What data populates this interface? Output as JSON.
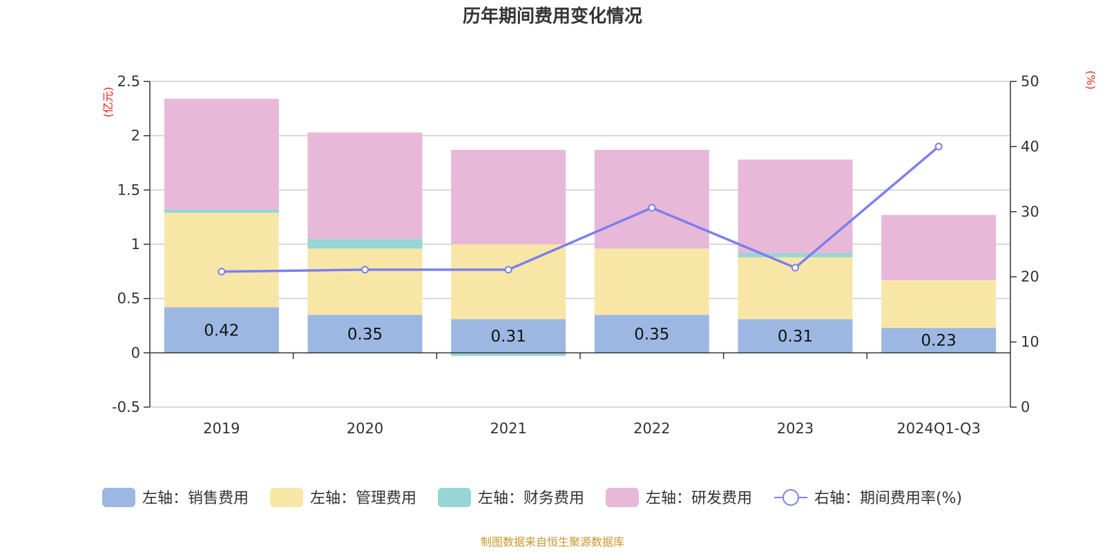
{
  "chart_data": {
    "type": "bar",
    "stacked": true,
    "title": "历年期间费用变化情况",
    "categories": [
      "2019",
      "2020",
      "2021",
      "2022",
      "2023",
      "2024Q1-Q3"
    ],
    "left_axis": {
      "unit": "(亿元)",
      "ylim": [
        -0.5,
        2.5
      ],
      "ticks": [
        "-0.5",
        "0",
        "0.5",
        "1",
        "1.5",
        "2",
        "2.5"
      ]
    },
    "right_axis": {
      "unit": "(%)",
      "ylim": [
        0,
        50
      ],
      "ticks": [
        "0",
        "10",
        "20",
        "30",
        "40",
        "50"
      ]
    },
    "grid": true,
    "series": [
      {
        "name": "左轴：销售费用",
        "axis": "left",
        "color": "#9cb8e2",
        "values": [
          0.42,
          0.35,
          0.31,
          0.35,
          0.31,
          0.23
        ],
        "labels": [
          "0.42",
          "0.35",
          "0.31",
          "0.35",
          "0.31",
          "0.23"
        ]
      },
      {
        "name": "左轴：管理费用",
        "axis": "left",
        "color": "#f8e6a6",
        "values": [
          0.87,
          0.61,
          0.69,
          0.61,
          0.57,
          0.44
        ]
      },
      {
        "name": "左轴：财务费用",
        "axis": "left",
        "color": "#98d5d5",
        "values": [
          0.03,
          0.09,
          -0.03,
          0.0,
          0.04,
          0.0
        ]
      },
      {
        "name": "左轴：研发费用",
        "axis": "left",
        "color": "#e8b8d9",
        "values": [
          1.02,
          0.98,
          0.87,
          0.91,
          0.86,
          0.6
        ]
      },
      {
        "name": "右轴：期间费用率(%)",
        "axis": "right",
        "type": "line",
        "color": "#7b7ff0",
        "values": [
          20.8,
          21.1,
          21.1,
          30.6,
          21.4,
          40.0
        ]
      }
    ],
    "legend_position": "bottom",
    "source": "制图数据来自恒生聚源数据库"
  }
}
